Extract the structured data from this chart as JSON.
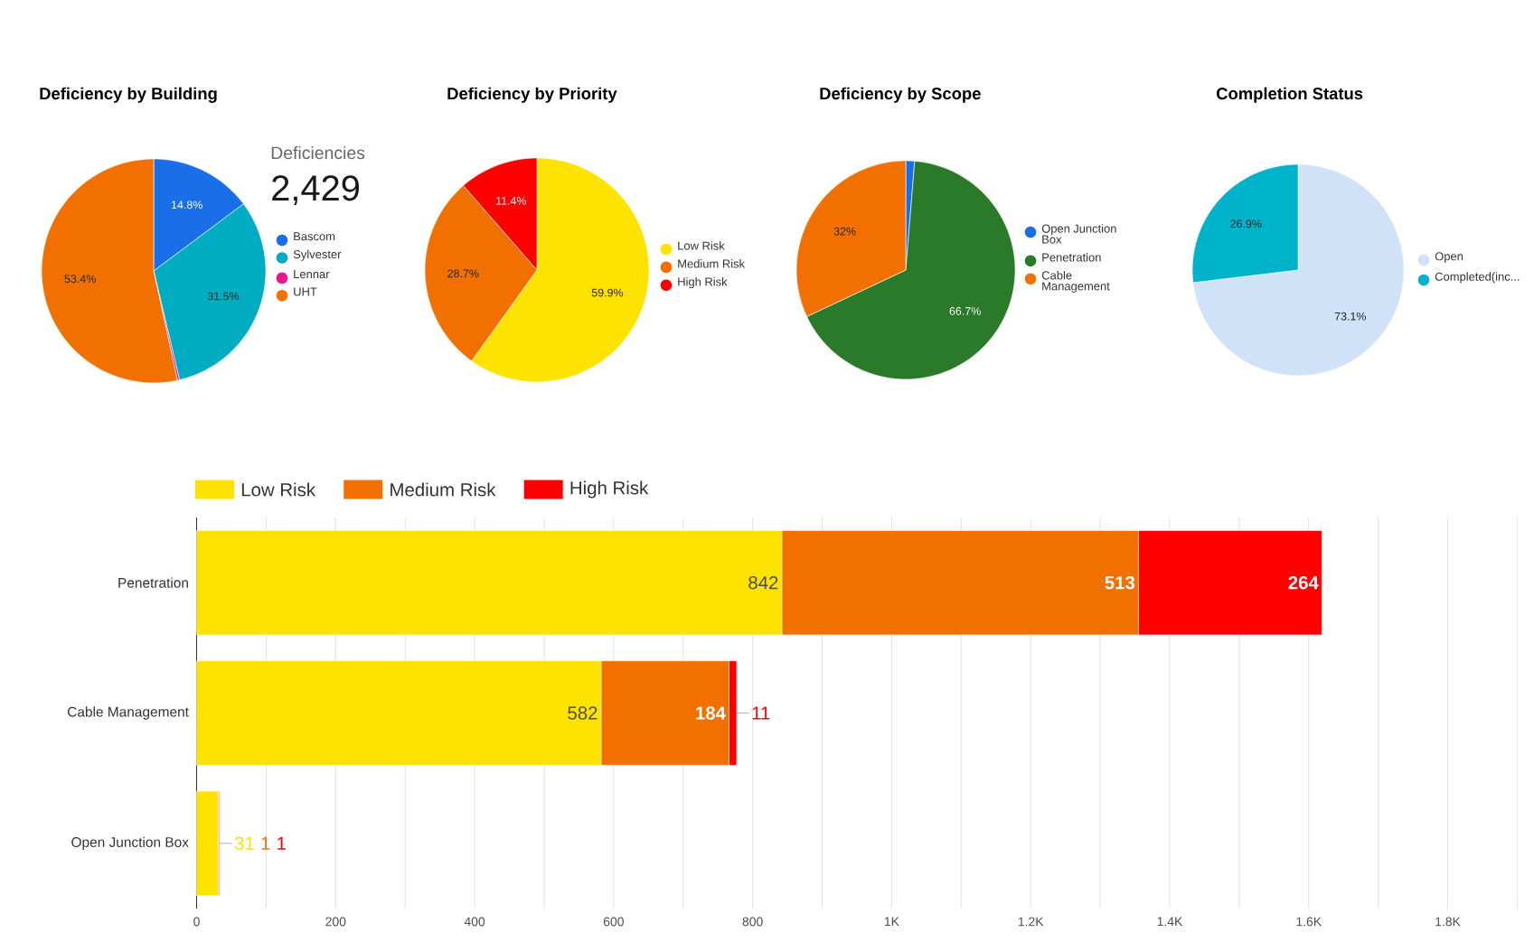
{
  "chart_data": [
    {
      "type": "pie",
      "title": "Deficiency by Building",
      "categories": [
        "Bascom",
        "Sylvester",
        "Lennar",
        "UHT"
      ],
      "values": [
        14.8,
        31.5,
        0.3,
        53.4
      ],
      "colors": [
        "#1A6FE8",
        "#00ACC1",
        "#E8178F",
        "#F27000"
      ],
      "value_labels": [
        "14.8%",
        "31.5%",
        null,
        "53.4%"
      ],
      "legend": "right"
    },
    {
      "type": "other",
      "title": "Deficiencies",
      "annotations": [
        "2,429"
      ]
    },
    {
      "type": "pie",
      "title": "Deficiency by Priority",
      "categories": [
        "Low Risk",
        "Medium Risk",
        "High Risk"
      ],
      "values": [
        59.9,
        28.7,
        11.4
      ],
      "colors": [
        "#FFE300",
        "#F27000",
        "#FF0000"
      ],
      "value_labels": [
        "59.9%",
        "28.7%",
        "11.4%"
      ],
      "legend": "right"
    },
    {
      "type": "pie",
      "title": "Deficiency by Scope",
      "categories": [
        "Open Junction Box",
        "Penetration",
        "Cable Management"
      ],
      "values": [
        1.3,
        66.7,
        32
      ],
      "colors": [
        "#1A6FE8",
        "#2A7A2A",
        "#F27000"
      ],
      "value_labels": [
        null,
        "66.7%",
        "32%"
      ],
      "legend": "right"
    },
    {
      "type": "pie",
      "title": "Completion Status",
      "categories": [
        "Open",
        "Completed(inc..."
      ],
      "values": [
        73.1,
        26.9
      ],
      "colors": [
        "#CFE2F8",
        "#00B3CA"
      ],
      "value_labels": [
        "73.1%",
        "26.9%"
      ],
      "legend": "right"
    },
    {
      "type": "bar",
      "orientation": "horizontal",
      "stacked": true,
      "categories": [
        "Penetration",
        "Cable Management",
        "Open Junction Box"
      ],
      "series": [
        {
          "name": "Low Risk",
          "color": "#FFE300",
          "values": [
            842,
            582,
            31
          ]
        },
        {
          "name": "Medium Risk",
          "color": "#F27000",
          "values": [
            513,
            184,
            1
          ]
        },
        {
          "name": "High Risk",
          "color": "#FF0000",
          "values": [
            264,
            11,
            1
          ]
        }
      ],
      "xlim": [
        0,
        1900
      ],
      "xticks": [
        0,
        {
          "value": 100,
          "label": null
        },
        200,
        {
          "value": 300,
          "label": null
        },
        400,
        {
          "value": 500,
          "label": null
        },
        600,
        {
          "value": 700,
          "label": null
        },
        800,
        {
          "value": 900,
          "label": null
        },
        {
          "value": 1000,
          "label": "1K"
        },
        {
          "value": 1100,
          "label": null
        },
        {
          "value": 1200,
          "label": "1.2K"
        },
        {
          "value": 1300,
          "label": null
        },
        {
          "value": 1400,
          "label": "1.4K"
        },
        {
          "value": 1500,
          "label": null
        },
        {
          "value": 1600,
          "label": "1.6K"
        },
        {
          "value": 1700,
          "label": null
        },
        {
          "value": 1800,
          "label": "1.8K"
        },
        {
          "value": 1900,
          "label": null
        }
      ],
      "grid": "x",
      "legend": "top left",
      "data_labels": true
    }
  ]
}
